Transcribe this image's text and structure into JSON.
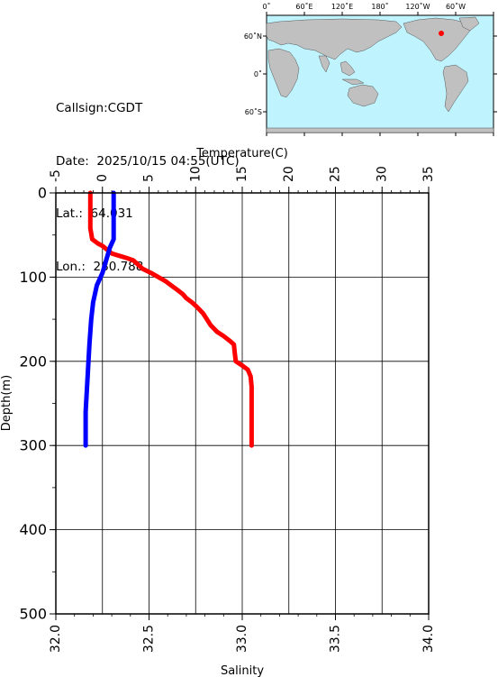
{
  "info": {
    "callsign_line": "Callsign:CGDT",
    "date_line": "Date:  2025/10/15 04:55(UTC)",
    "lat_line": "Lat.:  64.031",
    "lon_line": "Lon.:  280.788"
  },
  "map": {
    "top_labels": [
      "0˚",
      "60˚E",
      "120˚E",
      "180˚",
      "120˚W",
      "60˚W"
    ],
    "left_labels": [
      "60˚N",
      "0˚",
      "60˚S"
    ],
    "station_marker_color": "#ff0000",
    "ocean_color": "#bff4ff",
    "land_color": "#c0c0c0"
  },
  "chart_data": {
    "type": "line",
    "top_axis": {
      "label": "Temperature(C)",
      "range": [
        -5,
        35
      ],
      "ticks": [
        "-5",
        "0",
        "5",
        "10",
        "15",
        "20",
        "25",
        "30",
        "35"
      ]
    },
    "bottom_axis": {
      "label": "Salinity",
      "range": [
        32.0,
        34.0
      ],
      "ticks": [
        "32.0",
        "32.5",
        "33.0",
        "33.5",
        "34.0"
      ]
    },
    "y_axis": {
      "label": "Depth(m)",
      "range": [
        0,
        500
      ],
      "reversed": true,
      "ticks": [
        "0",
        "100",
        "200",
        "300",
        "400",
        "500"
      ]
    },
    "grid": true,
    "series": [
      {
        "color": "#ff0000",
        "axis": "top",
        "points": [
          [
            -1.3,
            0
          ],
          [
            -1.3,
            42
          ],
          [
            -1.1,
            55
          ],
          [
            -0.5,
            60
          ],
          [
            0.0,
            63
          ],
          [
            1.0,
            72
          ],
          [
            2.5,
            77
          ],
          [
            3.3,
            80
          ],
          [
            3.8,
            85
          ],
          [
            4.3,
            90
          ],
          [
            5.2,
            95
          ],
          [
            6.0,
            100
          ],
          [
            6.8,
            105
          ],
          [
            7.4,
            110
          ],
          [
            8.0,
            115
          ],
          [
            8.6,
            120
          ],
          [
            9.0,
            125
          ],
          [
            9.6,
            130
          ],
          [
            10.1,
            135
          ],
          [
            10.8,
            143
          ],
          [
            11.2,
            150
          ],
          [
            11.6,
            157
          ],
          [
            12.3,
            165
          ],
          [
            13.0,
            170
          ],
          [
            13.7,
            176
          ],
          [
            14.1,
            180
          ],
          [
            14.2,
            190
          ],
          [
            14.3,
            200
          ],
          [
            15.0,
            205
          ],
          [
            15.6,
            210
          ],
          [
            15.9,
            218
          ],
          [
            16.0,
            230
          ],
          [
            16.0,
            300
          ]
        ]
      },
      {
        "color": "#0000ff",
        "axis": "bottom",
        "points": [
          [
            32.31,
            0
          ],
          [
            32.31,
            55
          ],
          [
            32.29,
            65
          ],
          [
            32.27,
            80
          ],
          [
            32.25,
            95
          ],
          [
            32.22,
            110
          ],
          [
            32.2,
            130
          ],
          [
            32.19,
            150
          ],
          [
            32.18,
            180
          ],
          [
            32.17,
            220
          ],
          [
            32.16,
            260
          ],
          [
            32.16,
            300
          ]
        ]
      }
    ]
  }
}
